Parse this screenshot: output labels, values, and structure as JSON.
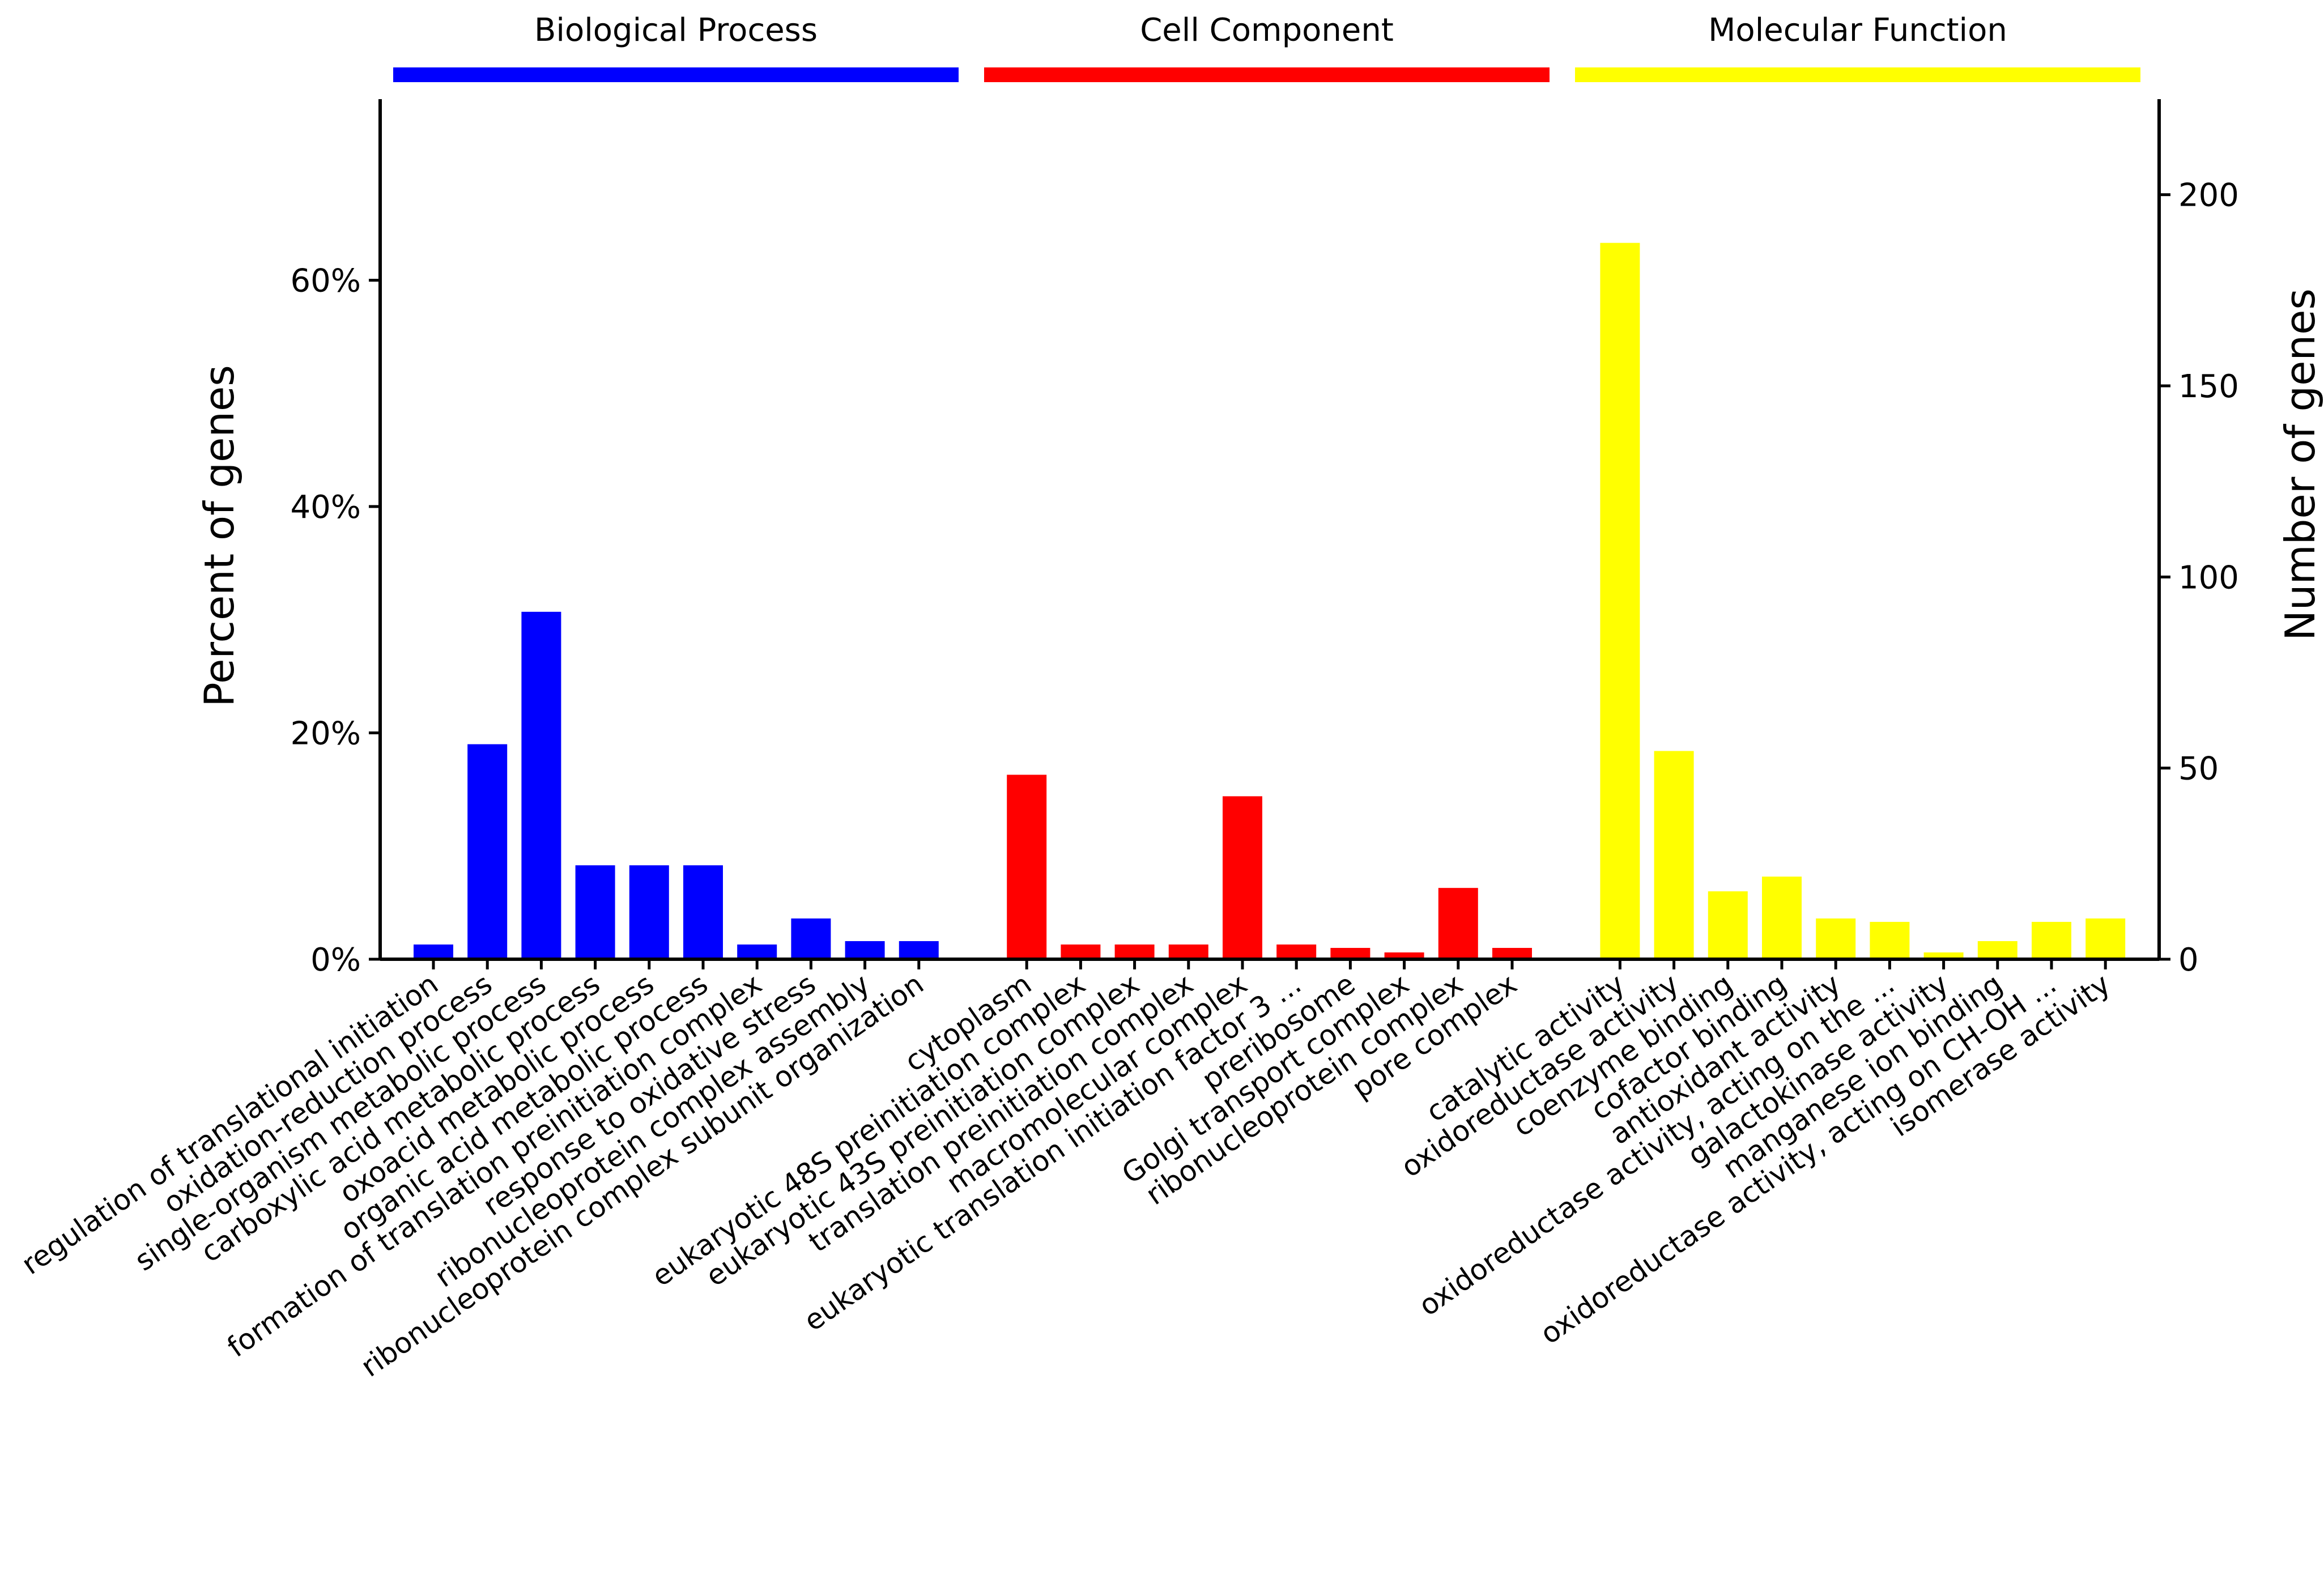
{
  "chart_data": {
    "type": "bar",
    "title": "",
    "xlabel": "",
    "ylabel_left": "Percent of genes",
    "ylabel_right": "Number of genes",
    "ylim_left": [
      0,
      76
    ],
    "ylim_right": [
      0,
      225
    ],
    "left_ticks": [
      {
        "value": 0,
        "label": "0%"
      },
      {
        "value": 20,
        "label": "20%"
      },
      {
        "value": 40,
        "label": "40%"
      },
      {
        "value": 60,
        "label": "60%"
      }
    ],
    "right_ticks": [
      {
        "value": 0,
        "label": "0"
      },
      {
        "value": 50,
        "label": "50"
      },
      {
        "value": 100,
        "label": "100"
      },
      {
        "value": 150,
        "label": "150"
      },
      {
        "value": 200,
        "label": "200"
      }
    ],
    "groups": [
      {
        "name": "Biological Process",
        "color": "#0000ff",
        "categories": [
          "regulation of translational initiation",
          "oxidation-reduction process",
          "single-organism metabolic process",
          "carboxylic acid metabolic process",
          "oxoacid metabolic process",
          "organic acid metabolic process",
          "formation of translation preinitiation complex",
          "response to oxidative stress",
          "ribonucleoprotein complex assembly",
          "ribonucleoprotein complex subunit organization"
        ],
        "values": [
          1.3,
          19.0,
          30.7,
          8.3,
          8.3,
          8.3,
          1.3,
          3.6,
          1.6,
          1.6
        ]
      },
      {
        "name": "Cell Component",
        "color": "#ff0000",
        "categories": [
          "cytoplasm",
          "eukaryotic 48S preinitiation complex",
          "eukaryotic 43S preinitiation complex",
          "translation preinitiation complex",
          "macromolecular complex",
          "eukaryotic translation initiation factor 3 ...",
          "preribosome",
          "Golgi transport complex",
          "ribonucleoprotein complex",
          "pore complex"
        ],
        "values": [
          16.3,
          1.3,
          1.3,
          1.3,
          14.4,
          1.3,
          1.0,
          0.6,
          6.3,
          1.0
        ]
      },
      {
        "name": "Molecular Function",
        "color": "#ffff00",
        "categories": [
          "catalytic activity",
          "oxidoreductase activity",
          "coenzyme binding",
          "cofactor binding",
          "antioxidant activity",
          "oxidoreductase activity, acting on the ...",
          "galactokinase activity",
          "manganese ion binding",
          "oxidoreductase activity, acting on CH-OH ...",
          "isomerase activity"
        ],
        "values": [
          63.3,
          18.4,
          6.0,
          7.3,
          3.6,
          3.3,
          0.6,
          1.6,
          3.3,
          3.6
        ]
      }
    ]
  }
}
